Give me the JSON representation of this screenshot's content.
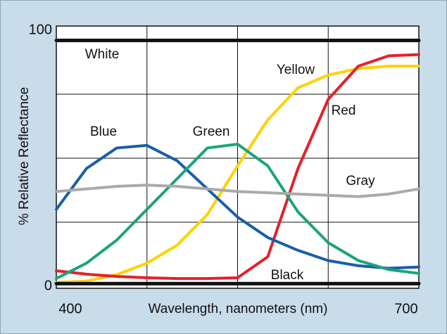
{
  "chart_data": {
    "type": "line",
    "xlabel": "Wavelength, nanometers (nm)",
    "ylabel": "% Relative Reflectance",
    "x": [
      400,
      425,
      450,
      475,
      500,
      525,
      550,
      575,
      600,
      625,
      650,
      675,
      700
    ],
    "xlim": [
      400,
      700
    ],
    "xticks": [
      400,
      700
    ],
    "xgrid": [
      475,
      550,
      625
    ],
    "ylim": [
      0,
      100
    ],
    "yticks": [
      0,
      100
    ],
    "ygrid": [
      25,
      50,
      75
    ],
    "series": [
      {
        "name": "White",
        "color": "#111111",
        "values": [
          96,
          96,
          96,
          96,
          96,
          96,
          96,
          96,
          96,
          96,
          96,
          96,
          96
        ]
      },
      {
        "name": "Yellow",
        "color": "#ffd200",
        "values": [
          1.5,
          2,
          4.5,
          9,
          16,
          28,
          47,
          65,
          77.5,
          82.5,
          85,
          86,
          86
        ]
      },
      {
        "name": "Red",
        "color": "#e52129",
        "values": [
          6,
          4.7,
          3.8,
          3.3,
          3,
          3,
          3.3,
          11.5,
          46,
          73,
          86,
          90,
          90.5
        ]
      },
      {
        "name": "Blue",
        "color": "#1a5ea8",
        "values": [
          30,
          46,
          54,
          55,
          49,
          38,
          27,
          19,
          14,
          10,
          8,
          7,
          7.5
        ]
      },
      {
        "name": "Green",
        "color": "#1ba47c",
        "values": [
          3,
          9,
          18,
          30,
          42,
          54,
          55.5,
          47,
          29,
          17,
          10,
          6.5,
          5
        ]
      },
      {
        "name": "Gray",
        "color": "#aaaaaa",
        "values": [
          37,
          38,
          39,
          39.5,
          39,
          38,
          37,
          36.5,
          36,
          35.5,
          35,
          36,
          38
        ]
      },
      {
        "name": "Black",
        "color": "#111111",
        "values": [
          1,
          1,
          1,
          1,
          1,
          1,
          1,
          1,
          1,
          1,
          1,
          1,
          1
        ]
      }
    ]
  }
}
